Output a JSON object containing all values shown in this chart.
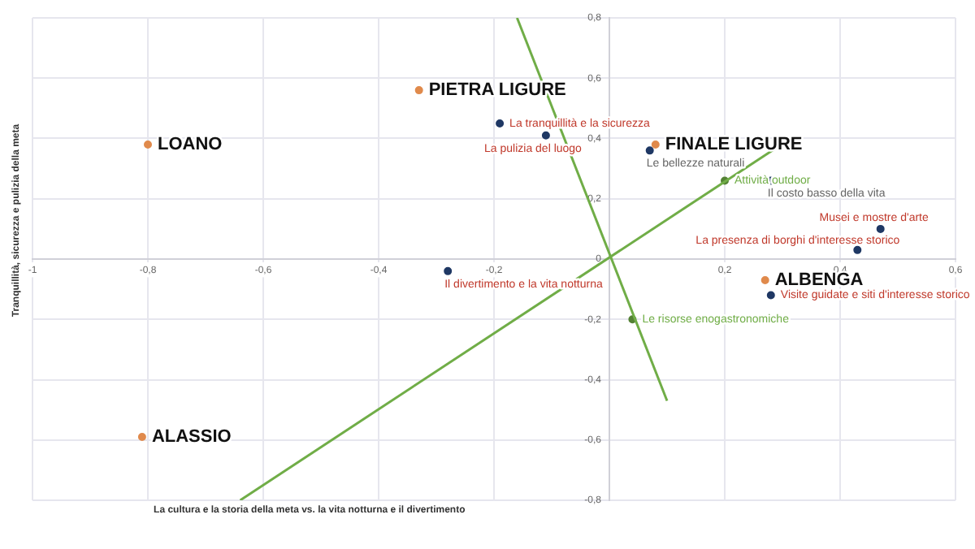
{
  "chart_data": {
    "type": "scatter",
    "xlabel": "La cultura e la storia della meta vs. la vita notturna e il divertimento",
    "ylabel": "Tranquillità, sicurezza e pulizia della meta",
    "xlim": [
      -1,
      0.6
    ],
    "xticks": [
      {
        "value": -1,
        "label": "-1"
      },
      {
        "value": -0.8,
        "label": "-0,8"
      },
      {
        "value": -0.6,
        "label": "-0,6"
      },
      {
        "value": -0.4,
        "label": "-0,4"
      },
      {
        "value": -0.2,
        "label": "-0,2"
      },
      {
        "value": 0,
        "label": null
      },
      {
        "value": 0.2,
        "label": "0,2"
      },
      {
        "value": 0.4,
        "label": "0,4"
      },
      {
        "value": 0.6,
        "label": "0,6"
      }
    ],
    "ylim": [
      -0.8,
      0.8
    ],
    "yticks": [
      {
        "value": -0.8,
        "label": "-0,8"
      },
      {
        "value": -0.6,
        "label": "-0,6"
      },
      {
        "value": -0.4,
        "label": "-0,4"
      },
      {
        "value": -0.2,
        "label": "-0,2"
      },
      {
        "value": 0,
        "label": "0"
      },
      {
        "value": 0.2,
        "label": "0,2"
      },
      {
        "value": 0.4,
        "label": "0,4"
      },
      {
        "value": 0.6,
        "label": "0,6"
      },
      {
        "value": 0.8,
        "label": "0,8"
      }
    ],
    "grid": true,
    "legend": false,
    "marker": "circle",
    "series": [
      {
        "type": "line",
        "color": "#70ad47",
        "marker": "none",
        "x": [
          -0.64,
          0.29
        ],
        "values": [
          -0.8,
          0.37
        ]
      },
      {
        "type": "line",
        "color": "#70ad47",
        "marker": "none",
        "x": [
          -0.16,
          0.1
        ],
        "values": [
          0.8,
          -0.47
        ]
      },
      {
        "color": "#e08a4c",
        "x": [
          -0.8,
          -0.33,
          0.08,
          -0.81,
          0.27
        ],
        "values": [
          0.38,
          0.56,
          0.38,
          -0.59,
          -0.07
        ],
        "value_labels": [
          "LOANO",
          "PIETRA LIGURE",
          "FINALE LIGURE",
          "ALASSIO",
          "ALBENGA"
        ]
      },
      {
        "color": "#1f3864",
        "x": [
          -0.19,
          -0.11,
          -0.28,
          0.47,
          0.43,
          0.28
        ],
        "values": [
          0.45,
          0.41,
          -0.04,
          0.1,
          0.03,
          -0.12
        ],
        "value_labels": [
          "La tranquillità e la sicurezza",
          "La pulizia del luogo",
          "Il divertimento e la vita notturna",
          "Musei e mostre d'arte",
          "La presenza di borghi d'interesse storico",
          "Visite guidate e siti d'interesse storico"
        ]
      },
      {
        "color": "#1f3864",
        "x": [
          0.07,
          0.28
        ],
        "values": [
          0.36,
          0.26
        ],
        "value_labels": [
          "Le bellezze naturali",
          "Il costo basso della vita"
        ]
      },
      {
        "color": "#548235",
        "x": [
          0.2,
          0.04
        ],
        "values": [
          0.26,
          -0.2
        ],
        "value_labels": [
          "Attività outdoor",
          "Le risorse enogastronomiche"
        ]
      }
    ]
  }
}
